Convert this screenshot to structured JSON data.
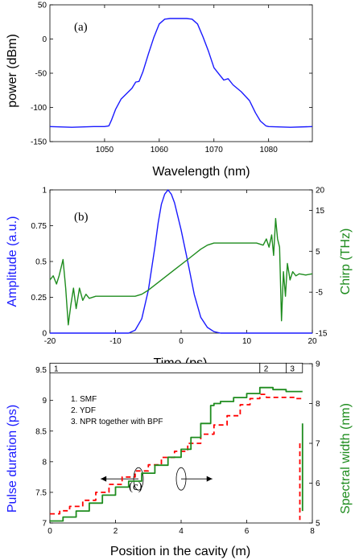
{
  "colors": {
    "blue": "#1a1aff",
    "green": "#1e8c1e",
    "red": "#ff0000",
    "axis": "#000000"
  },
  "chart_data": [
    {
      "type": "line",
      "panel_label": "(a)",
      "xlabel": "Wavelength (nm)",
      "ylabel": "power (dBm)",
      "xlim": [
        1040,
        1088
      ],
      "ylim": [
        -150,
        50
      ],
      "xticks": [
        1050,
        1060,
        1070,
        1080
      ],
      "yticks": [
        50,
        0,
        -50,
        -100,
        -150
      ],
      "series": [
        {
          "color": "#1a1aff",
          "x": [
            1040,
            1044,
            1048,
            1050,
            1050.8,
            1051.3,
            1052,
            1053,
            1054,
            1055,
            1055.7,
            1056.3,
            1057,
            1058,
            1059,
            1060,
            1061,
            1062,
            1063,
            1064,
            1065,
            1066,
            1067,
            1068,
            1069,
            1070,
            1071,
            1071.8,
            1072.6,
            1073.5,
            1075,
            1076.5,
            1077.6,
            1078.5,
            1079.5,
            1080,
            1084,
            1088
          ],
          "y": [
            -128,
            -129,
            -128,
            -128,
            -127,
            -118,
            -103,
            -88,
            -80,
            -72,
            -63,
            -62,
            -48,
            -22,
            2,
            22,
            29,
            30,
            30,
            30,
            30,
            29,
            22,
            3,
            -18,
            -42,
            -52,
            -60,
            -58,
            -67,
            -77,
            -90,
            -108,
            -120,
            -127,
            -128,
            -129,
            -128
          ]
        }
      ]
    },
    {
      "type": "line",
      "panel_label": "(b)",
      "xlabel": "Time (ps)",
      "ylabel": "Amplitude (a.u.)",
      "ylabel_right": "Chirp (THz)",
      "xlim": [
        -20,
        20
      ],
      "ylim": [
        0,
        1
      ],
      "ylim_right": [
        -15,
        20
      ],
      "xticks": [
        -20,
        -10,
        0,
        10,
        20
      ],
      "yticks": [
        0,
        0.25,
        0.5,
        0.75,
        1
      ],
      "yticks_right": [
        -15,
        -5,
        5,
        15,
        20
      ],
      "series": [
        {
          "axis": "left",
          "color": "#1a1aff",
          "x": [
            -20,
            -8,
            -7,
            -6,
            -5,
            -4,
            -3.5,
            -3,
            -2.5,
            -2,
            -1.5,
            -1,
            0,
            1,
            2,
            3,
            4,
            5,
            6,
            20
          ],
          "y": [
            0,
            0,
            0.02,
            0.1,
            0.3,
            0.6,
            0.77,
            0.9,
            0.97,
            1.0,
            0.97,
            0.91,
            0.72,
            0.5,
            0.27,
            0.11,
            0.04,
            0.01,
            0,
            0
          ]
        },
        {
          "axis": "right",
          "color": "#1e8c1e",
          "x": [
            -20,
            -19.5,
            -19,
            -18.6,
            -18.3,
            -18,
            -17.6,
            -17.2,
            -16.8,
            -16.4,
            -16,
            -15.5,
            -15,
            -14.5,
            -14,
            -13,
            -11,
            -9,
            -7,
            -6,
            -5,
            -3,
            -1,
            1,
            3,
            4,
            5,
            6,
            8,
            10,
            11.5,
            12.5,
            13,
            13.4,
            13.8,
            14.1,
            14.4,
            14.7,
            15,
            15.3,
            15.6,
            15.9,
            16.2,
            16.6,
            17,
            17.5,
            18,
            19,
            20
          ],
          "y": [
            -2,
            -1,
            -3,
            -1,
            1,
            3,
            -4,
            -13,
            -8,
            -4,
            -9,
            -4,
            -7,
            -5.5,
            -6.5,
            -6,
            -6,
            -6,
            -6,
            -5.5,
            -4.5,
            -2,
            0.5,
            3,
            5.5,
            6.5,
            7,
            7,
            7,
            7,
            7,
            6.5,
            8,
            6,
            9,
            4,
            13,
            8,
            6,
            -12,
            0,
            -6,
            2,
            -2,
            0,
            -1,
            -0.5,
            -0.8,
            -0.5
          ]
        }
      ]
    },
    {
      "type": "line",
      "panel_label": "(c)",
      "xlabel": "Position in the cavity (m)",
      "ylabel": "Pulse duration (ps)",
      "ylabel_right": "Spectral width (nm)",
      "xlim": [
        0,
        8
      ],
      "ylim": [
        7,
        9.6
      ],
      "ylim_right": [
        5,
        9
      ],
      "xticks": [
        0,
        2,
        4,
        6,
        8
      ],
      "yticks": [
        7,
        7.5,
        8,
        8.5,
        9,
        9.5
      ],
      "yticks_right": [
        5,
        6,
        7,
        8,
        9
      ],
      "segments": [
        {
          "label": "1",
          "start": 0,
          "end": 6.4
        },
        {
          "label": "2",
          "start": 6.4,
          "end": 7.2
        },
        {
          "label": "3",
          "start": 7.2,
          "end": 7.7
        }
      ],
      "legend_lines": [
        "1. SMF",
        "2. YDF",
        "3.  NPR together with BPF"
      ],
      "series": [
        {
          "axis": "left",
          "color": "#ff0000",
          "style": "dashed",
          "x": [
            0,
            0.3,
            0.6,
            1.0,
            1.4,
            1.8,
            2.2,
            2.6,
            3.0,
            3.4,
            3.8,
            4.2,
            4.6,
            5.0,
            5.4,
            5.8,
            6.1,
            6.4,
            6.6,
            7.0,
            7.5,
            7.7
          ],
          "y": [
            7.15,
            7.2,
            7.27,
            7.37,
            7.5,
            7.63,
            7.75,
            7.85,
            7.95,
            8.07,
            8.17,
            8.3,
            8.45,
            8.6,
            8.75,
            8.93,
            9.03,
            9.1,
            9.05,
            9.05,
            9.03,
            9.0
          ]
        },
        {
          "axis": "left",
          "color": "#ff0000",
          "style": "dashed",
          "x": [
            7.62,
            7.62
          ],
          "y": [
            8.3,
            7.05
          ]
        },
        {
          "axis": "right",
          "color": "#1e8c1e",
          "style": "solid",
          "x": [
            0,
            0.4,
            0.8,
            1.2,
            1.6,
            2.0,
            2.4,
            2.8,
            3.2,
            3.6,
            4.0,
            4.3,
            4.6,
            4.9,
            5.0,
            5.2,
            5.6,
            6.0,
            6.4,
            6.8,
            7.2,
            7.6,
            7.7
          ],
          "y": [
            5.05,
            5.15,
            5.3,
            5.5,
            5.7,
            5.9,
            6.05,
            6.25,
            6.45,
            6.65,
            6.85,
            7.15,
            7.5,
            7.95,
            8.0,
            8.05,
            8.15,
            8.25,
            8.4,
            8.35,
            8.3,
            8.3,
            8.3
          ]
        },
        {
          "axis": "right",
          "color": "#1e8c1e",
          "style": "solid",
          "x": [
            7.7,
            7.7
          ],
          "y": [
            7.5,
            5.3
          ]
        }
      ]
    }
  ]
}
